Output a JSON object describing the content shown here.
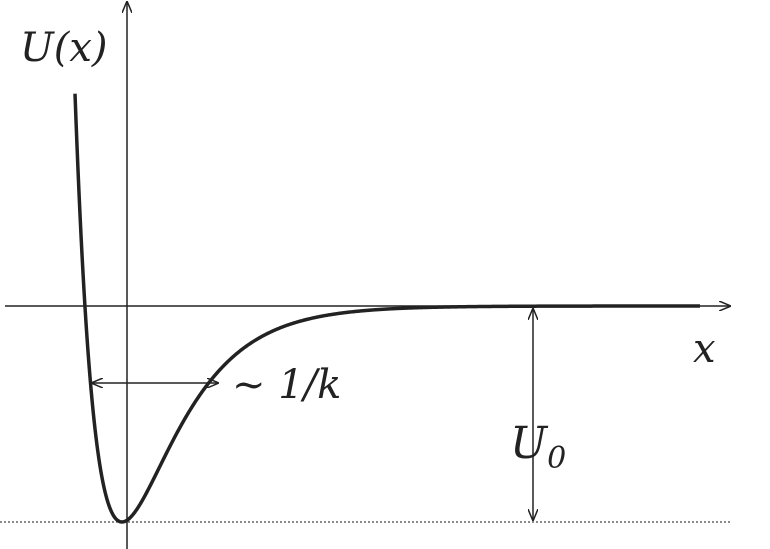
{
  "diagram": {
    "y_axis_label": "U(x)",
    "x_axis_label": "x",
    "width_label": "~ 1/k",
    "depth_label": "U",
    "depth_label_subscript": "0",
    "line_color": "#222222"
  }
}
